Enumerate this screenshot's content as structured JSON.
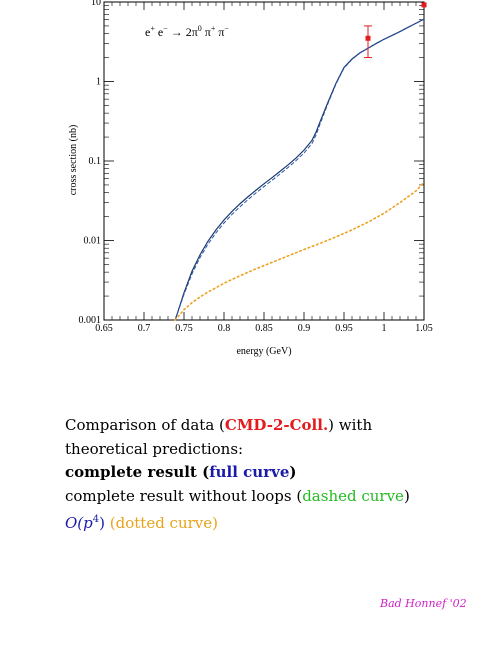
{
  "chart_data": {
    "type": "line",
    "xlabel": "energy (GeV)",
    "ylabel": "cross section (nb)",
    "xlim": [
      0.65,
      1.05
    ],
    "ylim": [
      0.001,
      10
    ],
    "yscale": "log",
    "grid": false,
    "x_ticks": [
      "0.65",
      "0.7",
      "0.75",
      "0.8",
      "0.85",
      "0.9",
      "0.95",
      "1",
      "1.05"
    ],
    "y_ticks": [
      "0.001",
      "0.01",
      "0.1",
      "1",
      "10"
    ],
    "annotation": {
      "prefix": "e",
      "sup1": "+",
      "mid": " e",
      "sup2": "−",
      "arrow": " → 2π",
      "sup3": "0",
      "pi2": " π",
      "sup4": "+",
      "pi3": " π",
      "sup5": "−"
    },
    "series": [
      {
        "kind": "full",
        "color": "#1a3a6e",
        "x": [
          0.739,
          0.75,
          0.76,
          0.77,
          0.78,
          0.79,
          0.8,
          0.81,
          0.82,
          0.83,
          0.84,
          0.85,
          0.86,
          0.87,
          0.88,
          0.89,
          0.9,
          0.91,
          0.915,
          0.92,
          0.93,
          0.94,
          0.95,
          0.96,
          0.97,
          0.98,
          0.99,
          1.0,
          1.01,
          1.02,
          1.03,
          1.04,
          1.05
        ],
        "y": [
          0.001,
          0.0022,
          0.0041,
          0.0066,
          0.0098,
          0.0136,
          0.0181,
          0.0232,
          0.029,
          0.0355,
          0.043,
          0.0516,
          0.0617,
          0.0741,
          0.0893,
          0.109,
          0.137,
          0.182,
          0.23,
          0.31,
          0.55,
          0.95,
          1.5,
          1.92,
          2.3,
          2.62,
          3.0,
          3.4,
          3.8,
          4.25,
          4.8,
          5.4,
          6.1
        ]
      },
      {
        "kind": "dashed",
        "color": "#2b55a8",
        "x": [
          0.739,
          0.75,
          0.76,
          0.77,
          0.78,
          0.79,
          0.8,
          0.81,
          0.82,
          0.83,
          0.84,
          0.85,
          0.86,
          0.87,
          0.88,
          0.89,
          0.9,
          0.91,
          0.915,
          0.92,
          0.93,
          0.94,
          0.95,
          0.96,
          0.97,
          0.98,
          0.99,
          1.0,
          1.01,
          1.02,
          1.03,
          1.04,
          1.05
        ],
        "y": [
          0.001,
          0.0021,
          0.0038,
          0.0061,
          0.009,
          0.0125,
          0.0166,
          0.0213,
          0.0266,
          0.0327,
          0.0397,
          0.0477,
          0.0571,
          0.0686,
          0.0828,
          0.101,
          0.126,
          0.166,
          0.212,
          0.29,
          0.53,
          0.93,
          1.47,
          1.9,
          2.28,
          2.6,
          2.98,
          3.38,
          3.78,
          4.23,
          4.78,
          5.38,
          6.08
        ]
      },
      {
        "kind": "dotted",
        "color": "#f0a020",
        "x": [
          0.739,
          0.75,
          0.76,
          0.77,
          0.78,
          0.8,
          0.82,
          0.84,
          0.86,
          0.88,
          0.9,
          0.92,
          0.94,
          0.96,
          0.98,
          1.0,
          1.02,
          1.04,
          1.05
        ],
        "y": [
          0.001,
          0.00135,
          0.00165,
          0.00195,
          0.00225,
          0.0029,
          0.0036,
          0.0044,
          0.0053,
          0.0064,
          0.0077,
          0.0092,
          0.0111,
          0.0136,
          0.017,
          0.022,
          0.03,
          0.042,
          0.054
        ]
      }
    ],
    "data_points": [
      {
        "x": 0.98,
        "y": 3.5,
        "y_low": 2.0,
        "y_high": 5.0,
        "color": "#e41a1c"
      },
      {
        "x": 1.05,
        "y": 9.2,
        "color": "#e41a1c"
      }
    ]
  },
  "caption": {
    "line1_a": "Comparison of data (",
    "line1_b": "CMD-2-Coll.",
    "line1_c": ") with",
    "line2": "theoretical predictions:",
    "line3_a": "complete result (",
    "line3_b": "full curve",
    "line3_c": ")",
    "line4_a": "complete result without loops (",
    "line4_b": "dashed curve",
    "line4_c": ")",
    "line5_a": "O(p",
    "line5_sup": "4",
    "line5_b": ")",
    "line5_c": " (",
    "line5_d": "dotted curve",
    "line5_e": ")"
  },
  "signature": "Bad Honnef '02"
}
